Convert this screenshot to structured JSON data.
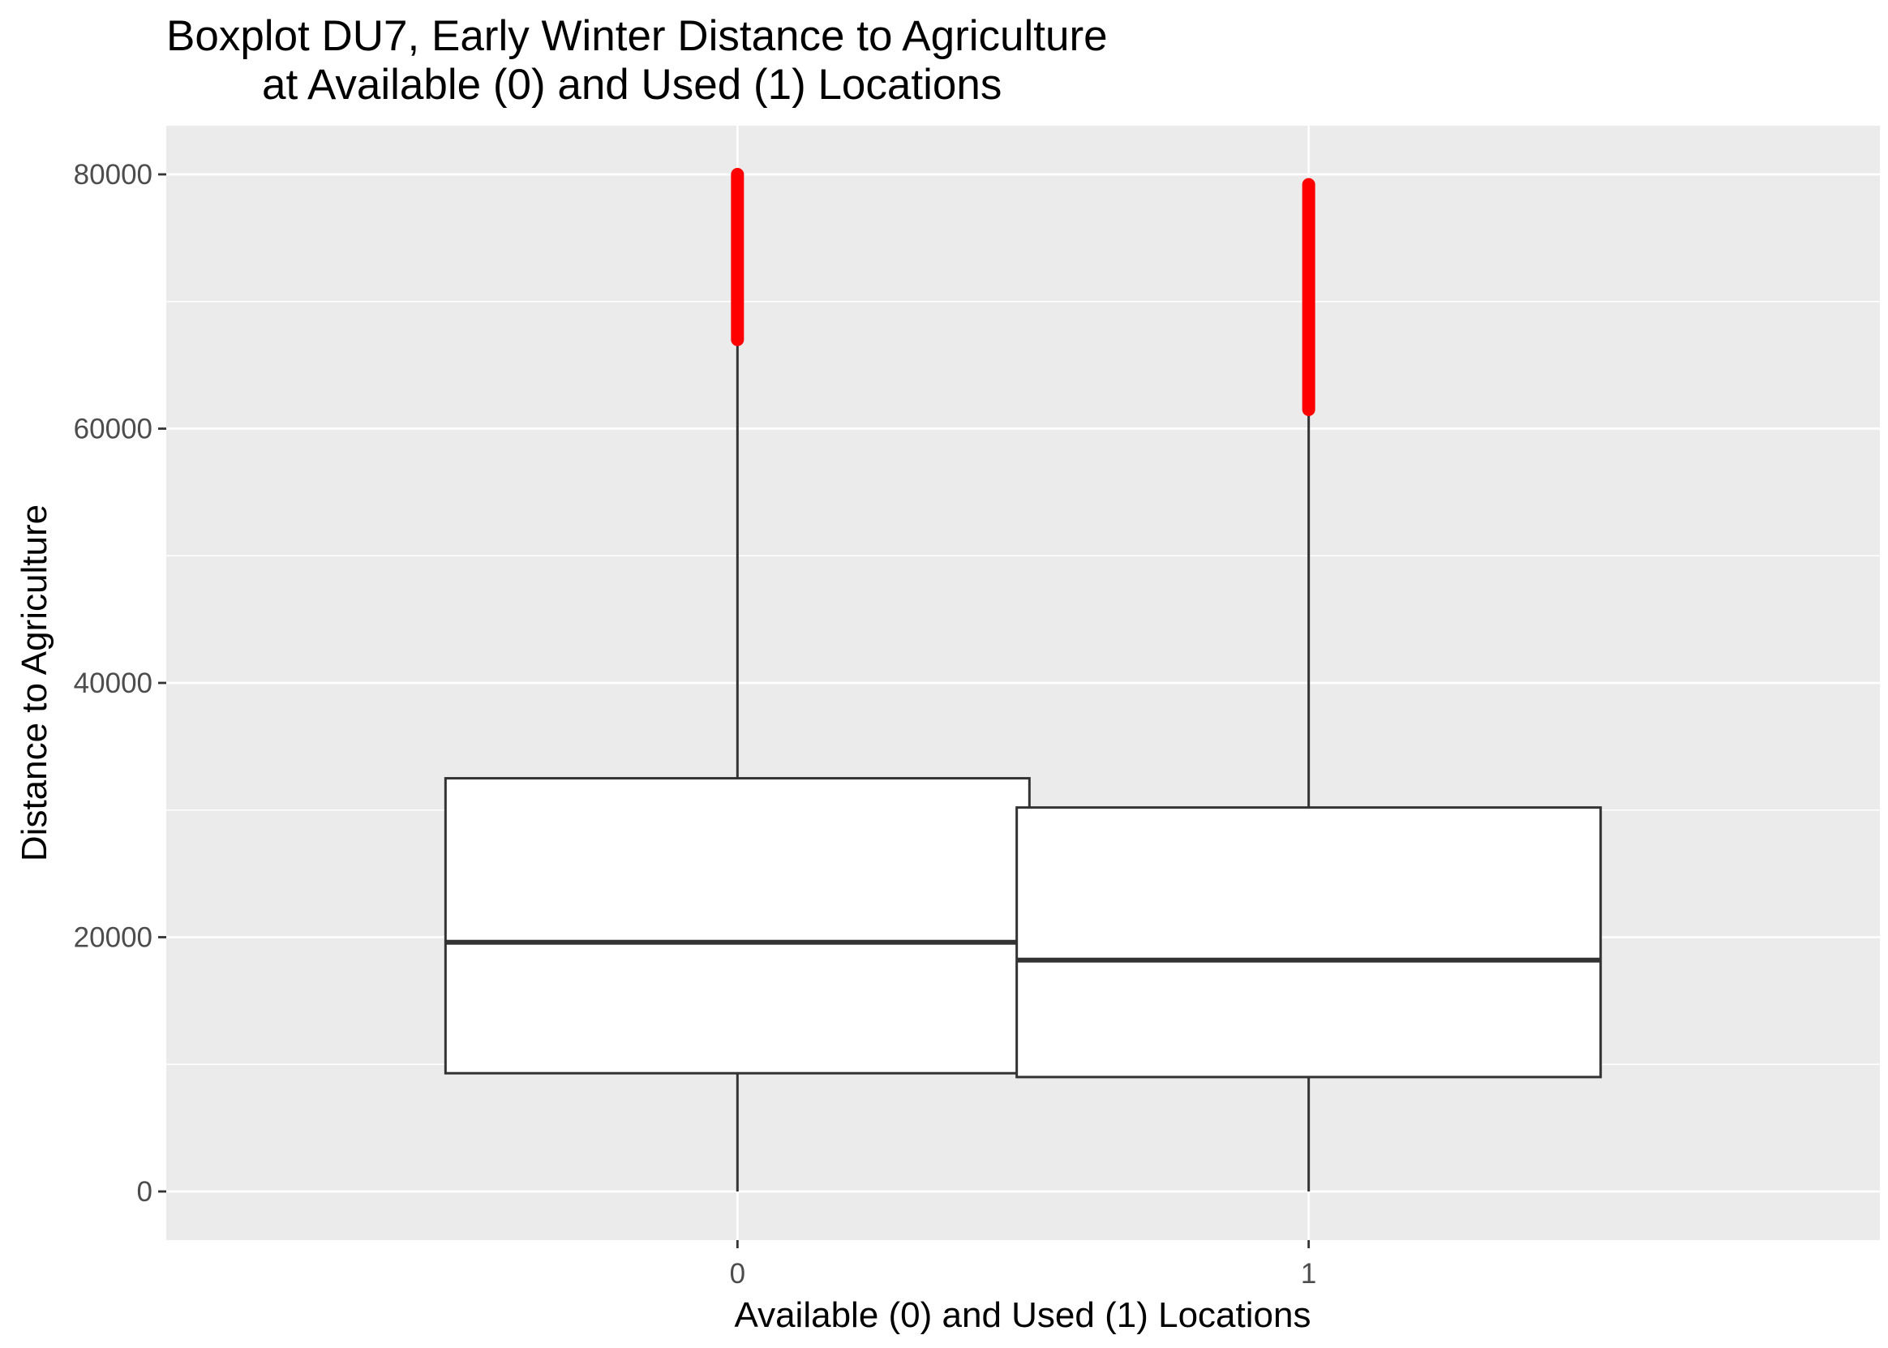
{
  "chart_data": {
    "type": "boxplot",
    "title": "Boxplot DU7, Early Winter Distance to Agriculture",
    "subtitle": "at Available (0) and Used (1) Locations",
    "xlabel": "Available (0) and Used (1) Locations",
    "ylabel": "Distance to Agriculture",
    "ylim": [
      -10000,
      84000
    ],
    "y_ticks": [
      0,
      20000,
      40000,
      60000,
      80000
    ],
    "categories": [
      "0",
      "1"
    ],
    "boxes": [
      {
        "category": "0",
        "whisker_low": 0,
        "q1": 9300,
        "median": 19600,
        "q3": 32500,
        "whisker_high": 67000,
        "outliers_range": [
          67000,
          80000
        ]
      },
      {
        "category": "1",
        "whisker_low": 0,
        "q1": 9000,
        "median": 18200,
        "q3": 30200,
        "whisker_high": 61500,
        "outliers_range": [
          61500,
          79200
        ]
      }
    ],
    "grid": true,
    "colors": {
      "panel_background": "#ebebeb",
      "grid_line": "#ffffff",
      "box_fill": "#ffffff",
      "box_line": "#333333",
      "outlier": "#ff0000"
    }
  }
}
